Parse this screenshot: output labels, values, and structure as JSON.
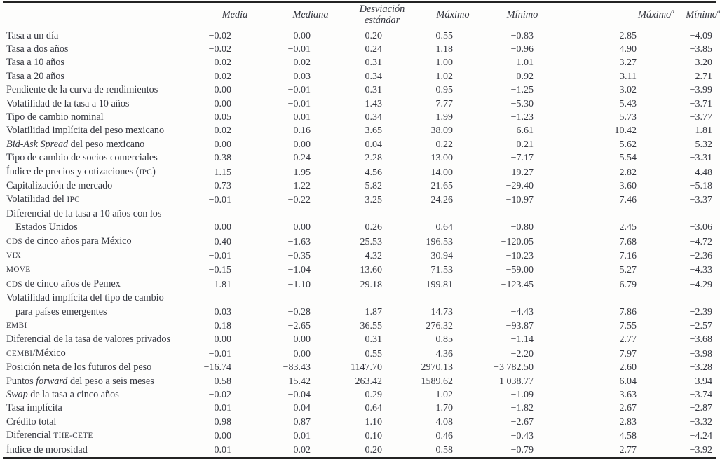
{
  "page": {
    "background_color": "#fdfdfc",
    "text_color": "#34363f",
    "rule_color": "#232323"
  },
  "table": {
    "headers": [
      {
        "text": "Media",
        "sup": ""
      },
      {
        "text": "Mediana",
        "sup": ""
      },
      {
        "text": "Desviación estándar",
        "sup": ""
      },
      {
        "text": "Máximo",
        "sup": ""
      },
      {
        "text": "Mínimo",
        "sup": ""
      },
      {
        "text": "Máximo",
        "sup": "a"
      },
      {
        "text": "Mínimo",
        "sup": "a"
      }
    ],
    "rows": [
      {
        "label_html": "Tasa a un día",
        "values": [
          "−0.02",
          "0.00",
          "0.20",
          "0.55",
          "−0.83",
          "2.85",
          "−4.09"
        ]
      },
      {
        "label_html": "Tasa a dos años",
        "values": [
          "−0.02",
          "−0.01",
          "0.24",
          "1.18",
          "−0.96",
          "4.90",
          "−3.85"
        ]
      },
      {
        "label_html": "Tasa a 10 años",
        "values": [
          "−0.02",
          "−0.02",
          "0.31",
          "1.00",
          "−1.01",
          "3.27",
          "−3.20"
        ]
      },
      {
        "label_html": "Tasa a 20 años",
        "values": [
          "−0.02",
          "−0.03",
          "0.34",
          "1.02",
          "−0.92",
          "3.11",
          "−2.71"
        ]
      },
      {
        "label_html": "Pendiente de la curva de rendimientos",
        "values": [
          "0.00",
          "−0.01",
          "0.31",
          "0.95",
          "−1.25",
          "3.02",
          "−3.99"
        ]
      },
      {
        "label_html": "Volatilidad de la tasa a 10 años",
        "values": [
          "0.00",
          "−0.01",
          "1.43",
          "7.77",
          "−5.30",
          "5.43",
          "−3.71"
        ]
      },
      {
        "label_html": "Tipo de cambio nominal",
        "values": [
          "0.05",
          "0.01",
          "0.34",
          "1.99",
          "−1.23",
          "5.73",
          "−3.77"
        ]
      },
      {
        "label_html": "Volatilidad implícita del peso mexicano",
        "values": [
          "0.02",
          "−0.16",
          "3.65",
          "38.09",
          "−6.61",
          "10.42",
          "−1.81"
        ]
      },
      {
        "label_html": "<i>Bid-Ask Spread</i> del peso mexicano",
        "values": [
          "0.00",
          "0.00",
          "0.04",
          "0.22",
          "−0.21",
          "5.62",
          "−5.32"
        ]
      },
      {
        "label_html": "Tipo de cambio de socios comerciales",
        "values": [
          "0.38",
          "0.24",
          "2.28",
          "13.00",
          "−7.17",
          "5.54",
          "−3.31"
        ]
      },
      {
        "label_html": "Índice de precios y cotizaciones (<span class='sc'>IPC</span>)",
        "values": [
          "1.15",
          "1.95",
          "4.56",
          "14.00",
          "−19.27",
          "2.82",
          "−4.48"
        ]
      },
      {
        "label_html": "Capitalización de mercado",
        "values": [
          "0.73",
          "1.22",
          "5.82",
          "21.65",
          "−29.40",
          "3.60",
          "−5.18"
        ]
      },
      {
        "label_html": "Volatilidad del <span class='sc'>IPC</span>",
        "values": [
          "−0.01",
          "−0.22",
          "3.25",
          "24.26",
          "−10.97",
          "7.46",
          "−3.37"
        ]
      },
      {
        "label_html": "Diferencial de la tasa a 10 años con los",
        "label_line2_html": "Estados Unidos",
        "values": [
          "0.00",
          "0.00",
          "0.26",
          "0.64",
          "−0.80",
          "2.45",
          "−3.06"
        ]
      },
      {
        "label_html": "<span class='sc'>CDS</span> de cinco años para México",
        "values": [
          "0.40",
          "−1.63",
          "25.53",
          "196.53",
          "−120.05",
          "7.68",
          "−4.72"
        ]
      },
      {
        "label_html": "<span class='sc'>VIX</span>",
        "values": [
          "−0.01",
          "−0.35",
          "4.32",
          "30.94",
          "−10.23",
          "7.16",
          "−2.36"
        ]
      },
      {
        "label_html": "<span class='sc'>MOVE</span>",
        "values": [
          "−0.15",
          "−1.04",
          "13.60",
          "71.53",
          "−59.00",
          "5.27",
          "−4.33"
        ]
      },
      {
        "label_html": "<span class='sc'>CDS</span> de cinco años de Pemex",
        "values": [
          "1.81",
          "−1.10",
          "29.18",
          "199.81",
          "−123.45",
          "6.79",
          "−4.29"
        ]
      },
      {
        "label_html": "Volatilidad implícita del tipo de cambio",
        "label_line2_html": "para países emergentes",
        "values": [
          "0.03",
          "−0.28",
          "1.87",
          "14.73",
          "−4.43",
          "7.86",
          "−2.39"
        ]
      },
      {
        "label_html": "<span class='sc'>EMBI</span>",
        "values": [
          "0.18",
          "−2.65",
          "36.55",
          "276.32",
          "−93.87",
          "7.55",
          "−2.57"
        ]
      },
      {
        "label_html": "Diferencial de la tasa de valores privados",
        "values": [
          "0.00",
          "0.00",
          "0.31",
          "0.85",
          "−1.14",
          "2.77",
          "−3.68"
        ]
      },
      {
        "label_html": "<span class='sc'>CEMBI</span>/México",
        "values": [
          "−0.01",
          "0.00",
          "0.55",
          "4.36",
          "−2.20",
          "7.97",
          "−3.98"
        ]
      },
      {
        "label_html": "Posición neta de los futuros del peso",
        "values": [
          "−16.74",
          "−83.43",
          "1147.70",
          "2970.13",
          "−3 782.50",
          "2.60",
          "−3.28"
        ]
      },
      {
        "label_html": "Puntos <i>forward</i> del peso a seis meses",
        "values": [
          "−0.58",
          "−15.42",
          "263.42",
          "1589.62",
          "−1 038.77",
          "6.04",
          "−3.94"
        ]
      },
      {
        "label_html": "<i>Swap</i> de la tasa a cinco años",
        "values": [
          "−0.02",
          "−0.04",
          "0.29",
          "1.02",
          "−1.09",
          "3.63",
          "−3.74"
        ]
      },
      {
        "label_html": "Tasa implícita",
        "values": [
          "0.01",
          "0.04",
          "0.64",
          "1.70",
          "−1.82",
          "2.67",
          "−2.87"
        ]
      },
      {
        "label_html": "Crédito total",
        "values": [
          "0.98",
          "0.87",
          "1.10",
          "4.08",
          "−2.67",
          "2.83",
          "−3.32"
        ]
      },
      {
        "label_html": "Diferencial <span class='sc'>TIIE-CETE</span>",
        "values": [
          "0.00",
          "0.01",
          "0.10",
          "0.46",
          "−0.43",
          "4.58",
          "−4.24"
        ]
      },
      {
        "label_html": "Índice de morosidad",
        "values": [
          "0.01",
          "0.02",
          "0.20",
          "0.58",
          "−0.79",
          "2.77",
          "−3.92"
        ]
      }
    ]
  }
}
